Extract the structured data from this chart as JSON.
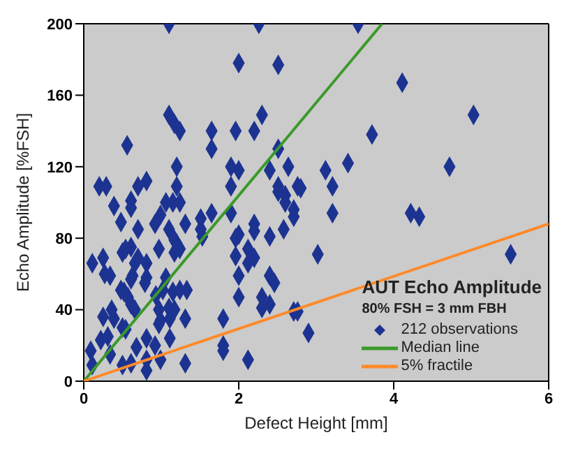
{
  "chart_data": {
    "type": "scatter",
    "xlabel": "Defect Height [mm]",
    "ylabel": "Echo Amplitude [%FSH]",
    "legend_title": "AUT Echo Amplitude",
    "annotations": [
      "80% FSH = 3 mm FBH"
    ],
    "xlim": [
      0,
      6
    ],
    "ylim": [
      0,
      200
    ],
    "xticks": [
      0,
      2,
      4,
      6
    ],
    "yticks": [
      0,
      40,
      80,
      120,
      160,
      200
    ],
    "grid": false,
    "legend": "bottom right",
    "series": [
      {
        "name": "212 observations",
        "marker": "diamond",
        "color": "#1c3391",
        "x": [
          1.1,
          2.26,
          3.54,
          2.0,
          2.51,
          4.11,
          1.1,
          1.17,
          1.24,
          1.65,
          1.96,
          2.3,
          2.2,
          3.72,
          1.65,
          2.51,
          0.56,
          1.2,
          1.9,
          2.0,
          2.4,
          2.64,
          3.12,
          3.41,
          0.2,
          0.29,
          0.7,
          0.81,
          1.2,
          1.9,
          2.51,
          2.51,
          2.6,
          2.76,
          2.8,
          3.21,
          5.03,
          4.72,
          3.21,
          4.22,
          4.33,
          2.71,
          2.71,
          2.6,
          2.2,
          2.2,
          2.0,
          1.96,
          2.4,
          2.58,
          2.12,
          1.96,
          2.12,
          2.2,
          3.02,
          5.51,
          2.0,
          2.4,
          2.46,
          2.0,
          2.3,
          2.3,
          2.4,
          2.71,
          2.76,
          2.9,
          2.12,
          0.39,
          0.61,
          0.61,
          0.48,
          0.7,
          1.06,
          1.15,
          1.24,
          0.99,
          0.92,
          1.1,
          1.31,
          1.51,
          1.65,
          1.9,
          1.51,
          1.53,
          1.17,
          1.2,
          1.24,
          1.17,
          0.54,
          0.5,
          0.61,
          0.7,
          0.66,
          0.81,
          0.97,
          0.11,
          0.25,
          0.27,
          0.34,
          0.63,
          0.61,
          0.48,
          0.52,
          0.81,
          0.79,
          1.06,
          1.02,
          1.15,
          1.24,
          1.33,
          0.93,
          0.57,
          0.61,
          0.66,
          0.36,
          0.25,
          0.39,
          0.97,
          1.1,
          1.17,
          0.99,
          1.11,
          1.31,
          0.5,
          0.54,
          0.97,
          1.8,
          0.22,
          0.31,
          0.81,
          1.11,
          0.09,
          0.34,
          0.68,
          0.92,
          1.8,
          1.8,
          0.11,
          0.5,
          0.61,
          0.81,
          0.99,
          0.81,
          1.31
        ],
        "values": [
          200,
          200,
          200,
          178,
          177,
          167,
          149,
          144,
          140,
          140,
          140,
          149,
          140,
          138,
          130,
          130,
          132,
          120,
          120,
          118,
          118,
          120,
          118,
          122,
          109,
          109,
          109,
          112,
          109,
          109,
          109,
          106,
          104,
          109,
          108,
          109,
          149,
          120,
          94,
          94,
          92,
          96,
          92,
          100,
          88,
          84,
          82,
          80,
          81,
          85,
          74,
          70,
          66,
          69,
          71,
          71,
          59,
          59,
          55,
          47,
          47,
          41,
          43,
          39,
          39,
          27,
          12,
          98,
          101,
          97,
          89,
          85,
          100,
          100,
          100,
          93,
          88,
          85,
          88,
          91,
          94,
          94,
          85,
          81,
          79,
          77,
          74,
          72,
          74,
          72,
          75,
          69,
          66,
          66,
          74,
          66,
          69,
          60,
          59,
          59,
          57,
          51,
          50,
          58,
          55,
          58,
          51,
          50,
          51,
          51,
          48,
          47,
          43,
          40,
          40,
          36,
          35,
          40,
          41,
          40,
          34,
          35,
          35,
          30,
          29,
          32,
          35,
          23,
          25,
          24,
          24,
          17,
          15,
          19,
          20,
          20,
          17,
          9,
          9,
          10,
          12,
          12,
          6,
          10
        ]
      },
      {
        "name": "Median line",
        "type": "line",
        "marker": "none",
        "color": "#3a9a2a",
        "x": [
          0,
          3.85
        ],
        "values": [
          0,
          200
        ]
      },
      {
        "name": "5% fractile",
        "type": "line",
        "marker": "none",
        "color": "#ff8a2a",
        "x": [
          0,
          6
        ],
        "values": [
          0,
          88
        ]
      }
    ]
  }
}
